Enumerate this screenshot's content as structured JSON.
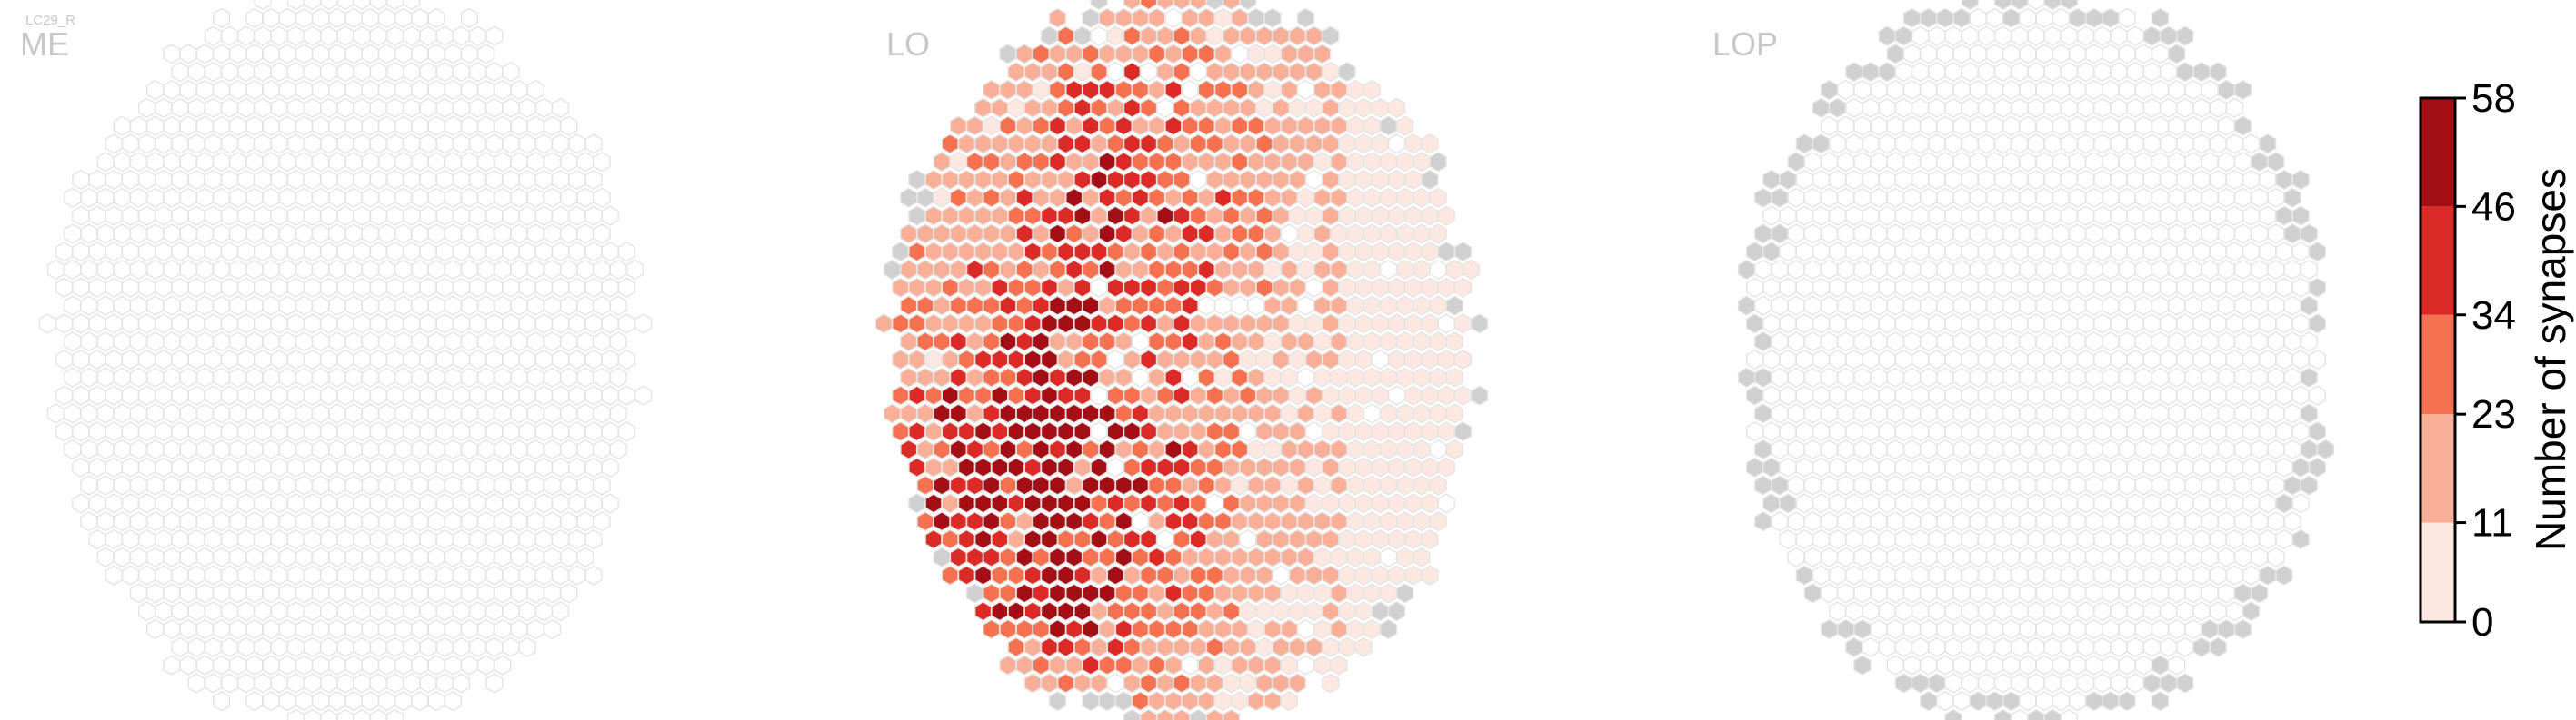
{
  "figure": {
    "cell_type_label": "LC29_R",
    "panels": [
      {
        "name": "ME"
      },
      {
        "name": "LO"
      },
      {
        "name": "LOP"
      }
    ]
  },
  "chart_data": {
    "type": "heatmap",
    "subtype": "hexagonal column map",
    "panels": [
      "ME",
      "LO",
      "LOP"
    ],
    "colorbar": {
      "label": "Number of synapses",
      "ticks": [
        0,
        11,
        23,
        34,
        46,
        58
      ],
      "vmin": 0,
      "vmax": 58,
      "bins": [
        {
          "range": [
            0,
            11
          ],
          "color": "#fde8e1"
        },
        {
          "range": [
            11,
            23
          ],
          "color": "#f9af97"
        },
        {
          "range": [
            23,
            34
          ],
          "color": "#f6714f"
        },
        {
          "range": [
            34,
            46
          ],
          "color": "#dc2b27"
        },
        {
          "range": [
            46,
            58
          ],
          "color": "#a30f15"
        }
      ]
    },
    "empty_color": "#ffffff",
    "no_data_color": "#d0d0d0",
    "outline_color": "#e4e4e4",
    "series": [
      {
        "panel": "ME",
        "summary": "all columns empty (no synapses)"
      },
      {
        "panel": "LO",
        "summary": "most columns 0-34 synapses; densest region in lower-left quadrant with peaks up to 46-58"
      },
      {
        "panel": "LOP",
        "summary": "all columns empty; grey no-data columns along the rim"
      }
    ]
  }
}
